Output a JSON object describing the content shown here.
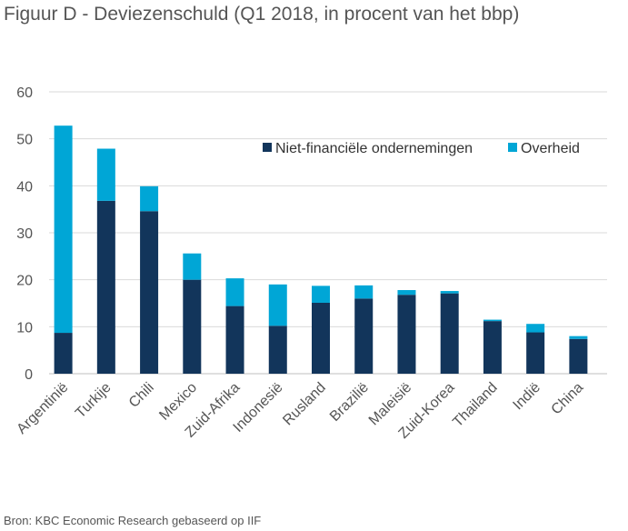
{
  "title": "Figuur D - Deviezenschuld  (Q1 2018, in procent van het bbp)",
  "source": "Bron: KBC Economic Research gebaseerd op IIF",
  "colors": {
    "series1": "#12355b",
    "series2": "#00a6d6",
    "grid": "#d9d9d9"
  },
  "chart_data": {
    "type": "bar",
    "stacked": true,
    "title": "Figuur D - Deviezenschuld  (Q1 2018, in procent van het bbp)",
    "xlabel": "",
    "ylabel": "",
    "ylim": [
      0,
      60
    ],
    "yticks": [
      0,
      10,
      20,
      30,
      40,
      50,
      60
    ],
    "grid": true,
    "legend_position": "top-right",
    "categories": [
      "Argentinië",
      "Turkije",
      "Chili",
      "Mexico",
      "Zuid-Afrika",
      "Indonesië",
      "Rusland",
      "Brazilië",
      "Maleisië",
      "Zuid-Korea",
      "Thailand",
      "Indië",
      "China"
    ],
    "series": [
      {
        "name": "Niet-financiële ondernemingen",
        "values": [
          8.7,
          36.8,
          34.6,
          20.0,
          14.4,
          10.2,
          15.1,
          16.0,
          16.8,
          17.1,
          11.2,
          8.8,
          7.4
        ]
      },
      {
        "name": "Overheid",
        "values": [
          44.1,
          11.1,
          5.3,
          5.6,
          5.9,
          8.8,
          3.6,
          2.8,
          1.0,
          0.5,
          0.3,
          1.8,
          0.6
        ]
      }
    ]
  }
}
